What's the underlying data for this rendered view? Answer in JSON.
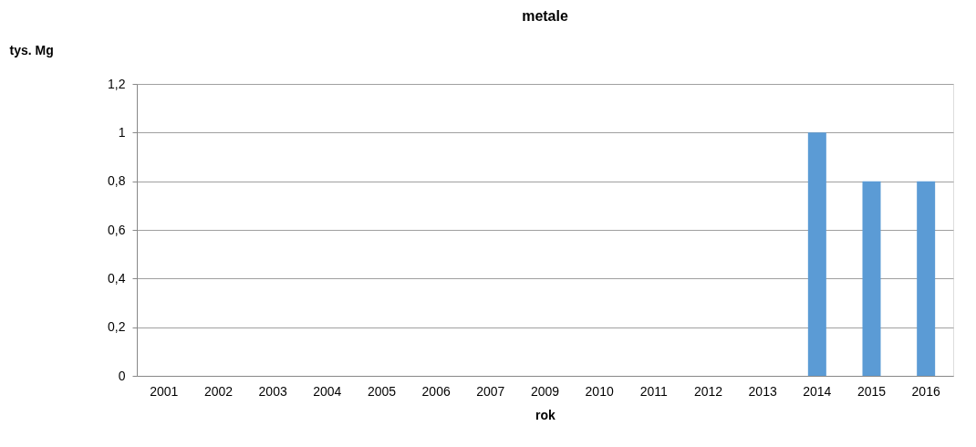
{
  "chart_data": {
    "type": "bar",
    "title": "metale",
    "xlabel": "rok",
    "ylabel": "tys. Mg",
    "categories": [
      "2001",
      "2002",
      "2003",
      "2004",
      "2005",
      "2006",
      "2007",
      "2009",
      "2010",
      "2011",
      "2012",
      "2013",
      "2014",
      "2015",
      "2016"
    ],
    "values": [
      0,
      0,
      0,
      0,
      0,
      0,
      0,
      0,
      0,
      0,
      0,
      0,
      1,
      0.8,
      0.8
    ],
    "color": "#5b9bd5",
    "ylim": [
      0,
      1.2
    ],
    "yticks": [
      0,
      {
        "value": 0.2,
        "label": "0,2"
      },
      {
        "value": 0.4,
        "label": "0,4"
      },
      {
        "value": 0.6,
        "label": "0,6"
      },
      {
        "value": 0.8,
        "label": "0,8"
      },
      1,
      {
        "value": 1.2,
        "label": "1,2"
      }
    ],
    "grid": "y"
  }
}
